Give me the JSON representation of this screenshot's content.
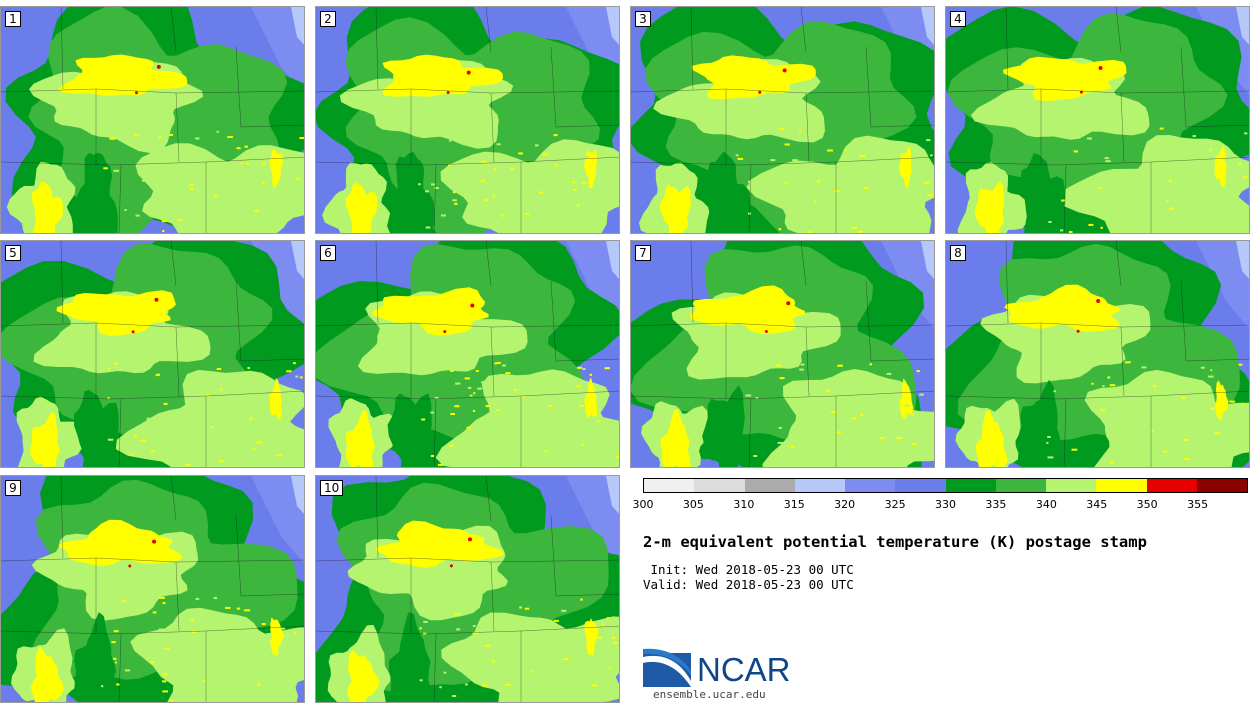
{
  "panels": [
    {
      "label": "1"
    },
    {
      "label": "2"
    },
    {
      "label": "3"
    },
    {
      "label": "4"
    },
    {
      "label": "5"
    },
    {
      "label": "6"
    },
    {
      "label": "7"
    },
    {
      "label": "8"
    },
    {
      "label": "9"
    },
    {
      "label": "10"
    }
  ],
  "colorbar": {
    "colors": [
      "#f0f0f0",
      "#dcdcdc",
      "#ababab",
      "#b6c8fa",
      "#7c8cf0",
      "#6b7ceb",
      "#009a1f",
      "#3cb63c",
      "#b4f46e",
      "#ffff00",
      "#e60000",
      "#8c0000"
    ],
    "ticks": [
      "300",
      "305",
      "310",
      "315",
      "320",
      "325",
      "330",
      "335",
      "340",
      "345",
      "350",
      "355"
    ]
  },
  "title": "2-m equivalent potential temperature (K) postage stamp",
  "init": " Init: Wed 2018-05-23 00 UTC",
  "valid": "Valid: Wed 2018-05-23 00 UTC",
  "logo": {
    "brand": "NCAR",
    "site": "ensemble.ucar.edu"
  }
}
